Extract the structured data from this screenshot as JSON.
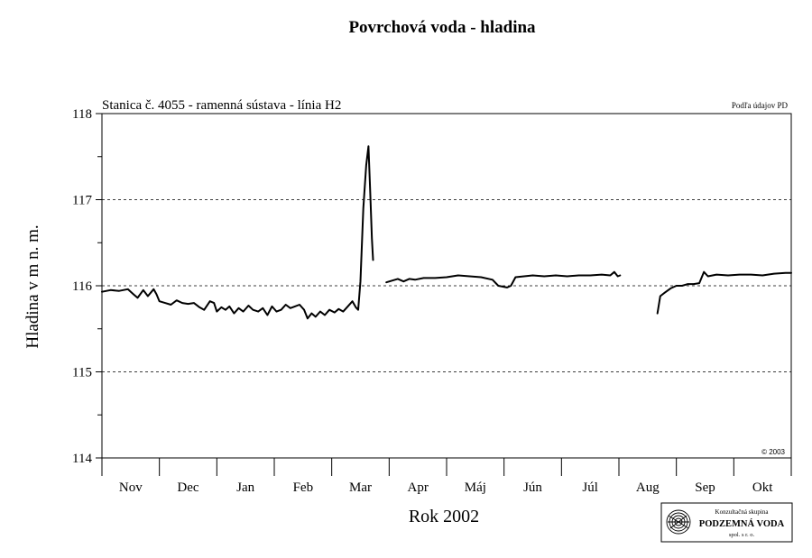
{
  "chart_data": {
    "type": "line",
    "title": "Povrchová voda - hladina",
    "subtitle": "Stanica č. 4055 - ramenná sústava - línia H2",
    "source_note": "Podľa údajov PD",
    "copyright": "© 2003",
    "xlabel": "Rok 2002",
    "ylabel": "Hladina v m n. m.",
    "ylim": [
      114,
      118
    ],
    "yticks": [
      "114",
      "115",
      "116",
      "117",
      "118"
    ],
    "grid": "dashed horizontal at 115, 116, 117",
    "month_labels": [
      "Nov",
      "Dec",
      "Jan",
      "Feb",
      "Mar",
      "Apr",
      "Máj",
      "Jún",
      "Júl",
      "Aug",
      "Sep",
      "Okt"
    ],
    "x_unit": "months from start of Nov (0 = Nov start, 12 = Okt end)",
    "xlim": [
      0,
      12
    ],
    "series": [
      {
        "segments": [
          [
            [
              0.0,
              115.93
            ],
            [
              0.15,
              115.95
            ],
            [
              0.3,
              115.94
            ],
            [
              0.45,
              115.96
            ],
            [
              0.55,
              115.9
            ],
            [
              0.62,
              115.86
            ],
            [
              0.72,
              115.95
            ],
            [
              0.8,
              115.88
            ],
            [
              0.9,
              115.96
            ],
            [
              0.95,
              115.9
            ],
            [
              1.0,
              115.82
            ],
            [
              1.1,
              115.8
            ],
            [
              1.2,
              115.78
            ],
            [
              1.3,
              115.83
            ],
            [
              1.4,
              115.8
            ],
            [
              1.5,
              115.79
            ],
            [
              1.6,
              115.8
            ],
            [
              1.7,
              115.75
            ],
            [
              1.78,
              115.72
            ],
            [
              1.88,
              115.82
            ],
            [
              1.95,
              115.8
            ],
            [
              2.0,
              115.7
            ],
            [
              2.08,
              115.75
            ],
            [
              2.15,
              115.72
            ],
            [
              2.22,
              115.76
            ],
            [
              2.3,
              115.68
            ],
            [
              2.38,
              115.74
            ],
            [
              2.46,
              115.7
            ],
            [
              2.55,
              115.77
            ],
            [
              2.63,
              115.72
            ],
            [
              2.72,
              115.7
            ],
            [
              2.8,
              115.74
            ],
            [
              2.88,
              115.66
            ],
            [
              2.96,
              115.76
            ],
            [
              3.04,
              115.7
            ],
            [
              3.12,
              115.72
            ],
            [
              3.2,
              115.78
            ],
            [
              3.28,
              115.74
            ],
            [
              3.36,
              115.76
            ],
            [
              3.44,
              115.78
            ],
            [
              3.52,
              115.72
            ],
            [
              3.58,
              115.62
            ],
            [
              3.65,
              115.68
            ],
            [
              3.72,
              115.64
            ],
            [
              3.8,
              115.7
            ],
            [
              3.88,
              115.66
            ],
            [
              3.96,
              115.72
            ],
            [
              4.05,
              115.69
            ],
            [
              4.12,
              115.73
            ],
            [
              4.2,
              115.7
            ],
            [
              4.28,
              115.76
            ],
            [
              4.36,
              115.82
            ],
            [
              4.42,
              115.75
            ],
            [
              4.46,
              115.72
            ],
            [
              4.5,
              116.05
            ],
            [
              4.55,
              116.9
            ],
            [
              4.6,
              117.4
            ],
            [
              4.64,
              117.62
            ],
            [
              4.67,
              117.1
            ],
            [
              4.7,
              116.55
            ],
            [
              4.72,
              116.3
            ]
          ],
          [
            [
              4.95,
              116.04
            ],
            [
              5.05,
              116.06
            ],
            [
              5.15,
              116.08
            ],
            [
              5.25,
              116.05
            ],
            [
              5.35,
              116.08
            ],
            [
              5.45,
              116.07
            ],
            [
              5.6,
              116.09
            ],
            [
              5.8,
              116.09
            ],
            [
              6.0,
              116.1
            ],
            [
              6.2,
              116.12
            ],
            [
              6.4,
              116.11
            ],
            [
              6.6,
              116.1
            ],
            [
              6.8,
              116.07
            ],
            [
              6.9,
              116.0
            ],
            [
              7.05,
              115.98
            ],
            [
              7.12,
              116.0
            ],
            [
              7.2,
              116.1
            ],
            [
              7.35,
              116.11
            ],
            [
              7.5,
              116.12
            ],
            [
              7.7,
              116.11
            ],
            [
              7.9,
              116.12
            ],
            [
              8.1,
              116.11
            ],
            [
              8.3,
              116.12
            ],
            [
              8.5,
              116.12
            ],
            [
              8.7,
              116.13
            ],
            [
              8.85,
              116.12
            ],
            [
              8.92,
              116.16
            ],
            [
              8.98,
              116.11
            ],
            [
              9.02,
              116.12
            ]
          ]
        ]
      },
      {
        "segments": [
          [
            [
              9.67,
              115.68
            ],
            [
              9.72,
              115.88
            ],
            [
              9.8,
              115.92
            ],
            [
              9.9,
              115.97
            ],
            [
              10.0,
              116.0
            ],
            [
              10.1,
              116.0
            ],
            [
              10.2,
              116.02
            ],
            [
              10.3,
              116.02
            ],
            [
              10.4,
              116.03
            ],
            [
              10.48,
              116.16
            ],
            [
              10.55,
              116.11
            ],
            [
              10.7,
              116.13
            ],
            [
              10.9,
              116.12
            ],
            [
              11.1,
              116.13
            ],
            [
              11.3,
              116.13
            ],
            [
              11.5,
              116.12
            ],
            [
              11.7,
              116.14
            ],
            [
              11.9,
              116.15
            ],
            [
              12.0,
              116.15
            ]
          ]
        ]
      }
    ]
  },
  "logo": {
    "line1": "Konzultačná skupina",
    "line2": "PODZEMNÁ VODA",
    "line3": "spol. s r. o."
  }
}
